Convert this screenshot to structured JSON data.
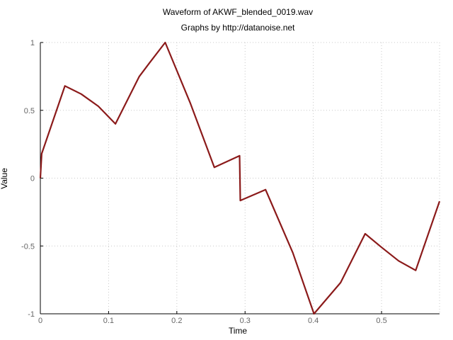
{
  "chart_data": {
    "type": "line",
    "title": "Waveform of AKWF_blended_0019.wav",
    "subtitle": "Graphs by http://datanoise.net",
    "xlabel": "Time",
    "ylabel": "Value",
    "xlim": [
      0,
      0.585
    ],
    "ylim": [
      -1,
      1
    ],
    "xticks": [
      "0",
      "0.1",
      "0.2",
      "0.3",
      "0.4",
      "0.5"
    ],
    "yticks": [
      "1",
      "0.5",
      "0",
      "-0.5",
      "-1"
    ],
    "grid": true,
    "series": [
      {
        "color": "#8b1a1a",
        "x": [
          0,
          0.002,
          0.036,
          0.06,
          0.085,
          0.11,
          0.145,
          0.16,
          0.183,
          0.22,
          0.255,
          0.292,
          0.293,
          0.33,
          0.37,
          0.401,
          0.44,
          0.476,
          0.5,
          0.525,
          0.55,
          0.585
        ],
        "y": [
          0.0,
          0.18,
          0.68,
          0.62,
          0.53,
          0.4,
          0.75,
          0.85,
          1.0,
          0.55,
          0.08,
          0.165,
          -0.165,
          -0.085,
          -0.55,
          -1.0,
          -0.77,
          -0.41,
          -0.51,
          -0.61,
          -0.68,
          -0.17
        ]
      }
    ]
  }
}
